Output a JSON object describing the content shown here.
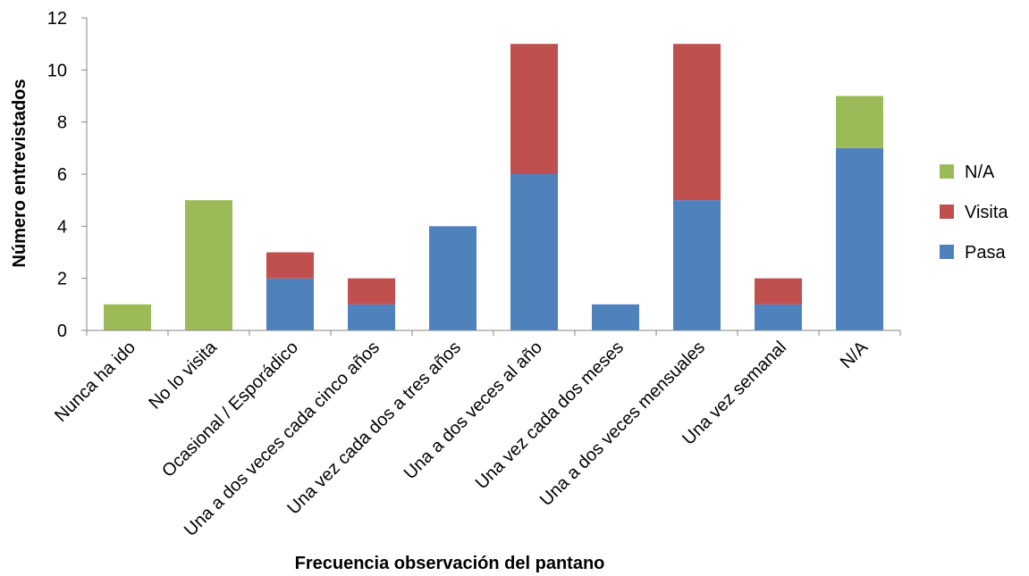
{
  "chart_data": {
    "type": "bar",
    "stacked": true,
    "xlabel": "Frecuencia  observación  del pantano",
    "ylabel": "Número  entrevistados",
    "ylim": [
      0,
      12
    ],
    "yticks": [
      0,
      2,
      4,
      6,
      8,
      10,
      12
    ],
    "grid": false,
    "legend_position": "right",
    "categories": [
      "Nunca ha ido",
      "No lo visita",
      "Ocasional / Esporádico",
      "Una a dos veces cada cinco años",
      "Una vez cada dos a tres años",
      "Una a dos veces al año",
      "Una vez cada dos meses",
      "Una a dos veces mensuales",
      "Una vez semanal",
      "N/A"
    ],
    "series": [
      {
        "name": "Pasa",
        "color": "#4F81BD",
        "values": [
          0,
          0,
          2,
          1,
          4,
          6,
          1,
          5,
          1,
          7
        ]
      },
      {
        "name": "Visita",
        "color": "#C0504D",
        "values": [
          0,
          0,
          1,
          1,
          0,
          5,
          0,
          6,
          1,
          0
        ]
      },
      {
        "name": "N/A",
        "color": "#9BBB59",
        "values": [
          1,
          5,
          0,
          0,
          0,
          0,
          0,
          0,
          0,
          2
        ]
      }
    ],
    "legend_order": [
      "N/A",
      "Visita",
      "Pasa"
    ]
  }
}
